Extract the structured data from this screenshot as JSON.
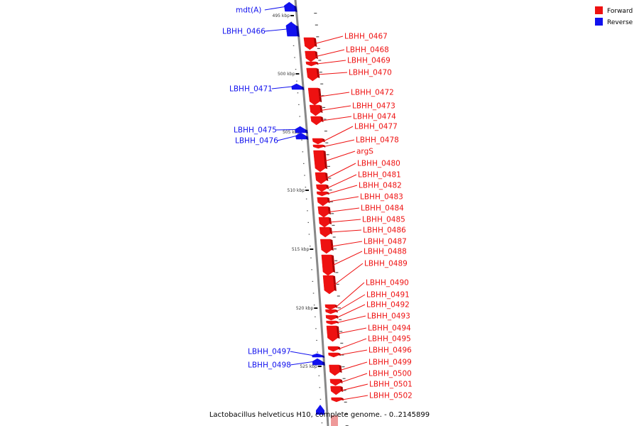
{
  "caption": "Lactobacillus helveticus H10, complete genome. - 0..2145899",
  "legend": [
    {
      "label": "Forward",
      "color": "#ee1111"
    },
    {
      "label": "Reverse",
      "color": "#1111ee"
    }
  ],
  "scale_ticks": [
    {
      "label": "495 kbp",
      "kbp": 495
    },
    {
      "label": "500 kbp",
      "kbp": 500
    },
    {
      "label": "505 kbp",
      "kbp": 505
    },
    {
      "label": "510 kbp",
      "kbp": 510
    },
    {
      "label": "515 kbp",
      "kbp": 515
    },
    {
      "label": "520 kbp",
      "kbp": 520
    },
    {
      "label": "525 kbp",
      "kbp": 525
    }
  ],
  "genes": [
    {
      "name": "mdt(A)",
      "strand": "reverse"
    },
    {
      "name": "LBHH_0466",
      "strand": "reverse"
    },
    {
      "name": "LBHH_0467",
      "strand": "forward"
    },
    {
      "name": "LBHH_0468",
      "strand": "forward"
    },
    {
      "name": "LBHH_0469",
      "strand": "forward"
    },
    {
      "name": "LBHH_0470",
      "strand": "forward"
    },
    {
      "name": "LBHH_0471",
      "strand": "reverse"
    },
    {
      "name": "LBHH_0472",
      "strand": "forward"
    },
    {
      "name": "LBHH_0473",
      "strand": "forward"
    },
    {
      "name": "LBHH_0474",
      "strand": "forward"
    },
    {
      "name": "LBHH_0475",
      "strand": "reverse"
    },
    {
      "name": "LBHH_0476",
      "strand": "reverse"
    },
    {
      "name": "LBHH_0477",
      "strand": "forward"
    },
    {
      "name": "LBHH_0478",
      "strand": "forward"
    },
    {
      "name": "argS",
      "strand": "forward"
    },
    {
      "name": "LBHH_0480",
      "strand": "forward"
    },
    {
      "name": "LBHH_0481",
      "strand": "forward"
    },
    {
      "name": "LBHH_0482",
      "strand": "forward"
    },
    {
      "name": "LBHH_0483",
      "strand": "forward"
    },
    {
      "name": "LBHH_0484",
      "strand": "forward"
    },
    {
      "name": "LBHH_0485",
      "strand": "forward"
    },
    {
      "name": "LBHH_0486",
      "strand": "forward"
    },
    {
      "name": "LBHH_0487",
      "strand": "forward"
    },
    {
      "name": "LBHH_0488",
      "strand": "forward"
    },
    {
      "name": "LBHH_0489",
      "strand": "forward"
    },
    {
      "name": "LBHH_0490",
      "strand": "forward"
    },
    {
      "name": "LBHH_0491",
      "strand": "forward"
    },
    {
      "name": "LBHH_0492",
      "strand": "forward"
    },
    {
      "name": "LBHH_0493",
      "strand": "forward"
    },
    {
      "name": "LBHH_0494",
      "strand": "forward"
    },
    {
      "name": "LBHH_0495",
      "strand": "forward"
    },
    {
      "name": "LBHH_0496",
      "strand": "forward"
    },
    {
      "name": "LBHH_0497",
      "strand": "reverse"
    },
    {
      "name": "LBHH_0498",
      "strand": "reverse"
    },
    {
      "name": "LBHH_0499",
      "strand": "forward"
    },
    {
      "name": "LBHH_0500",
      "strand": "forward"
    },
    {
      "name": "LBHH_0501",
      "strand": "forward"
    },
    {
      "name": "LBHH_0502",
      "strand": "forward"
    }
  ]
}
